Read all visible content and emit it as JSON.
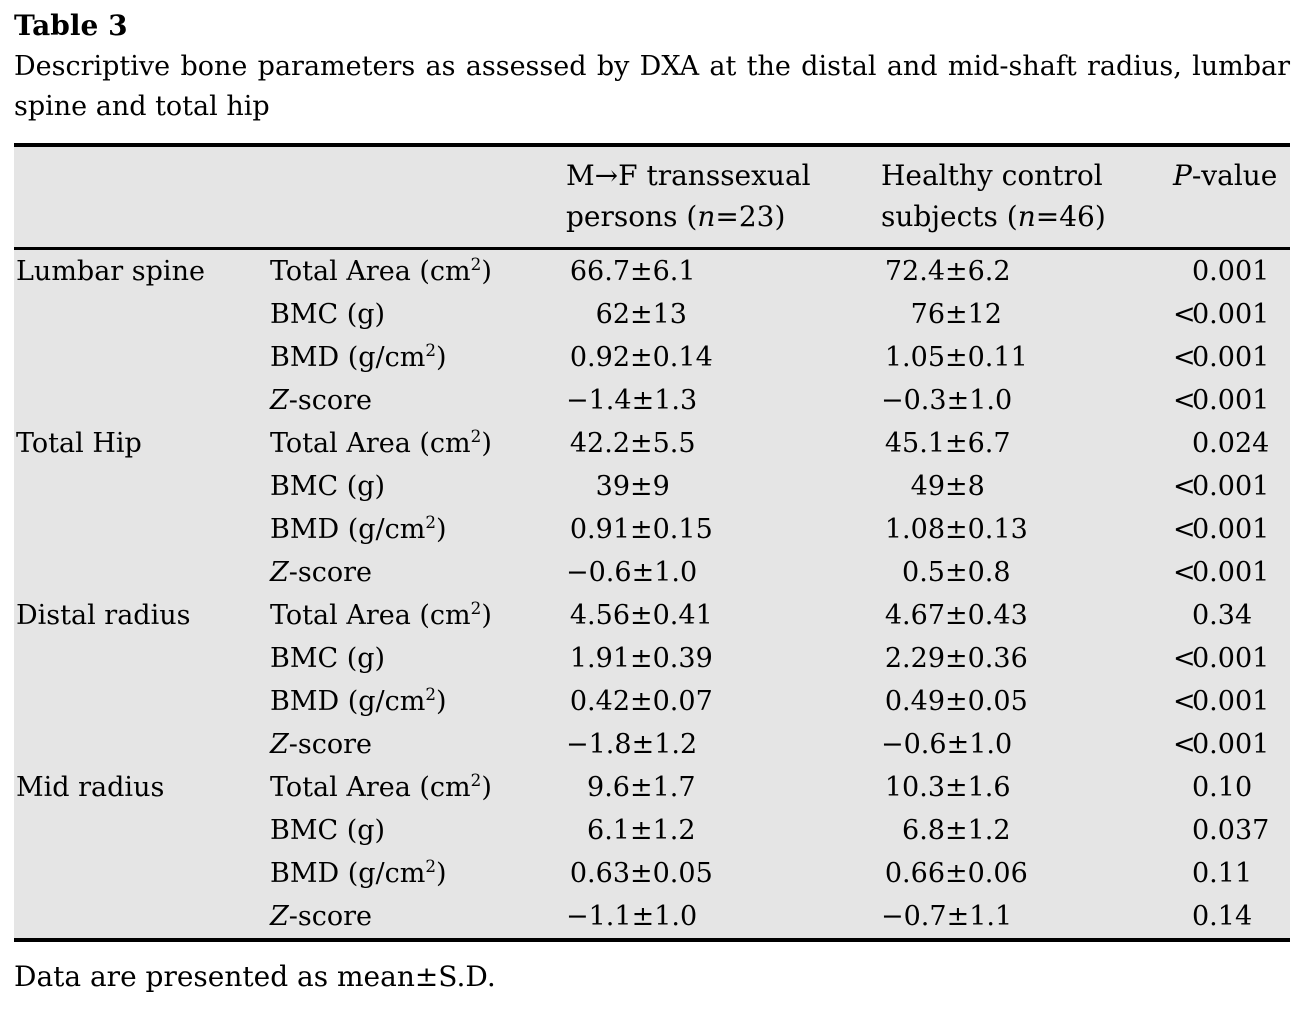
{
  "title": "Table 3",
  "caption": "Descriptive bone parameters as assessed by DXA at the distal and mid-shaft radius, lumbar spine and total hip",
  "footnote": "Data are presented as mean±S.D.",
  "colors": {
    "table_bg": "#e5e5e5",
    "rule": "#000000",
    "page_bg": "#ffffff"
  },
  "table": {
    "columns": [
      {
        "id": "group",
        "segs": []
      },
      {
        "id": "param",
        "segs": []
      },
      {
        "id": "mtf",
        "segs": [
          {
            "t": "M→F transsexual persons ("
          },
          {
            "t": "n",
            "i": true
          },
          {
            "t": "=23)"
          }
        ]
      },
      {
        "id": "ctrl",
        "segs": [
          {
            "t": "Healthy control subjects ("
          },
          {
            "t": "n",
            "i": true
          },
          {
            "t": "=46)"
          }
        ]
      },
      {
        "id": "p",
        "segs": [
          {
            "t": "P",
            "i": true
          },
          {
            "t": "-value"
          }
        ]
      }
    ],
    "groups": [
      {
        "name": "Lumbar spine",
        "rows": [
          {
            "param": [
              {
                "t": "Total Area (cm"
              },
              {
                "t": "2",
                "sup": true
              },
              {
                "t": ")"
              }
            ],
            "mtf": "66.7±6.1",
            "ctrl": "72.4±6.2",
            "p": "0.001"
          },
          {
            "param": [
              {
                "t": "BMC (g)"
              }
            ],
            "mtf": "62±13",
            "ctrl": "76±12",
            "p": "<0.001"
          },
          {
            "param": [
              {
                "t": "BMD (g/cm"
              },
              {
                "t": "2",
                "sup": true
              },
              {
                "t": ")"
              }
            ],
            "mtf": "0.92±0.14",
            "ctrl": "1.05±0.11",
            "p": "<0.001"
          },
          {
            "param": [
              {
                "t": "Z",
                "i": true
              },
              {
                "t": "-score"
              }
            ],
            "mtf": "−1.4±1.3",
            "ctrl": "−0.3±1.0",
            "p": "<0.001"
          }
        ]
      },
      {
        "name": "Total Hip",
        "rows": [
          {
            "param": [
              {
                "t": "Total Area (cm"
              },
              {
                "t": "2",
                "sup": true
              },
              {
                "t": ")"
              }
            ],
            "mtf": "42.2±5.5",
            "ctrl": "45.1±6.7",
            "p": "0.024"
          },
          {
            "param": [
              {
                "t": "BMC (g)"
              }
            ],
            "mtf": "39±9",
            "ctrl": "49±8",
            "p": "<0.001"
          },
          {
            "param": [
              {
                "t": "BMD (g/cm"
              },
              {
                "t": "2",
                "sup": true
              },
              {
                "t": ")"
              }
            ],
            "mtf": "0.91±0.15",
            "ctrl": "1.08±0.13",
            "p": "<0.001"
          },
          {
            "param": [
              {
                "t": "Z",
                "i": true
              },
              {
                "t": "-score"
              }
            ],
            "mtf": "−0.6±1.0",
            "ctrl": "0.5±0.8",
            "p": "<0.001"
          }
        ]
      },
      {
        "name": "Distal radius",
        "rows": [
          {
            "param": [
              {
                "t": "Total Area (cm"
              },
              {
                "t": "2",
                "sup": true
              },
              {
                "t": ")"
              }
            ],
            "mtf": "4.56±0.41",
            "ctrl": "4.67±0.43",
            "p": "0.34"
          },
          {
            "param": [
              {
                "t": "BMC (g)"
              }
            ],
            "mtf": "1.91±0.39",
            "ctrl": "2.29±0.36",
            "p": "<0.001"
          },
          {
            "param": [
              {
                "t": "BMD (g/cm"
              },
              {
                "t": "2",
                "sup": true
              },
              {
                "t": ")"
              }
            ],
            "mtf": "0.42±0.07",
            "ctrl": "0.49±0.05",
            "p": "<0.001"
          },
          {
            "param": [
              {
                "t": "Z",
                "i": true
              },
              {
                "t": "-score"
              }
            ],
            "mtf": "−1.8±1.2",
            "ctrl": "−0.6±1.0",
            "p": "<0.001"
          }
        ]
      },
      {
        "name": "Mid radius",
        "rows": [
          {
            "param": [
              {
                "t": "Total Area (cm"
              },
              {
                "t": "2",
                "sup": true
              },
              {
                "t": ")"
              }
            ],
            "mtf": "9.6±1.7",
            "ctrl": "10.3±1.6",
            "p": "0.10"
          },
          {
            "param": [
              {
                "t": "BMC (g)"
              }
            ],
            "mtf": "6.1±1.2",
            "ctrl": "6.8±1.2",
            "p": "0.037"
          },
          {
            "param": [
              {
                "t": "BMD (g/cm"
              },
              {
                "t": "2",
                "sup": true
              },
              {
                "t": ")"
              }
            ],
            "mtf": "0.63±0.05",
            "ctrl": "0.66±0.06",
            "p": "0.11"
          },
          {
            "param": [
              {
                "t": "Z",
                "i": true
              },
              {
                "t": "-score"
              }
            ],
            "mtf": "−1.1±1.0",
            "ctrl": "−0.7±1.1",
            "p": "0.14"
          }
        ]
      }
    ]
  }
}
